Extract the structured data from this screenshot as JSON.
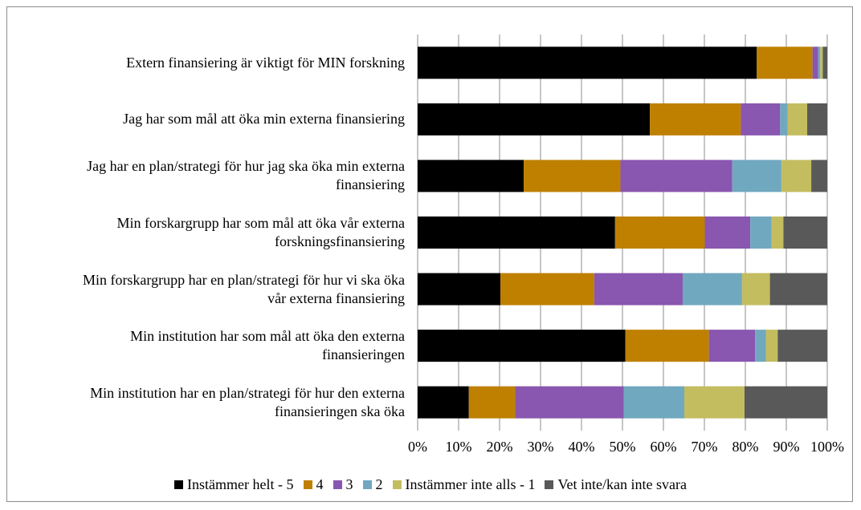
{
  "chart_data": {
    "type": "bar",
    "orientation": "horizontal",
    "stacked": true,
    "percent_axis": true,
    "xlim": [
      0,
      100
    ],
    "x_ticks": [
      "0%",
      "10%",
      "20%",
      "30%",
      "40%",
      "50%",
      "60%",
      "70%",
      "80%",
      "90%",
      "100%"
    ],
    "grid": "vertical",
    "legend_position": "bottom",
    "categories": [
      "Extern finansiering är viktigt för MIN forskning",
      "Jag har som mål att öka min externa finansiering",
      "Jag har en plan/strategi för hur jag ska öka min externa finansiering",
      "Min forskargrupp har som mål att öka vår externa forskningsfinansiering",
      "Min forskargrupp har en plan/strategi för hur vi ska öka vår externa finansiering",
      "Min institution har som mål att öka den externa finansieringen",
      "Min institution har en plan/strategi för hur den externa finansieringen ska öka"
    ],
    "category_lines": [
      [
        "Extern finansiering är viktigt för MIN forskning"
      ],
      [
        "Jag har som mål att öka min externa finansiering"
      ],
      [
        "Jag har en plan/strategi för hur jag ska öka min externa",
        "finansiering"
      ],
      [
        "Min forskargrupp har som mål att öka vår externa",
        "forskningsfinansiering"
      ],
      [
        "Min forskargrupp har en plan/strategi för hur vi ska öka",
        "vår externa finansiering"
      ],
      [
        "Min institution har som mål att öka den externa",
        "finansieringen"
      ],
      [
        "Min institution har en plan/strategi för hur den externa",
        "finansieringen ska öka"
      ]
    ],
    "series": [
      {
        "name": "Instämmer helt - 5",
        "color": "#000000",
        "values": [
          82.8,
          56.7,
          25.9,
          48.2,
          20.2,
          50.7,
          12.5
        ]
      },
      {
        "name": "4",
        "color": "#bf8000",
        "values": [
          13.6,
          22.2,
          23.6,
          21.9,
          22.9,
          20.4,
          11.3
        ]
      },
      {
        "name": "3",
        "color": "#8956b0",
        "values": [
          1.4,
          9.6,
          27.3,
          11.1,
          21.6,
          11.3,
          26.5
        ]
      },
      {
        "name": "2",
        "color": "#70a8bf",
        "values": [
          0.5,
          1.8,
          12.0,
          5.2,
          14.5,
          2.6,
          14.8
        ]
      },
      {
        "name": "Instämmer inte alls - 1",
        "color": "#c3bd5f",
        "values": [
          0.6,
          4.8,
          7.3,
          2.9,
          6.8,
          2.9,
          14.7
        ]
      },
      {
        "name": "Vet inte/kan inte svara",
        "color": "#595959",
        "values": [
          1.1,
          4.9,
          3.9,
          10.7,
          14.0,
          12.1,
          20.2
        ]
      }
    ]
  }
}
